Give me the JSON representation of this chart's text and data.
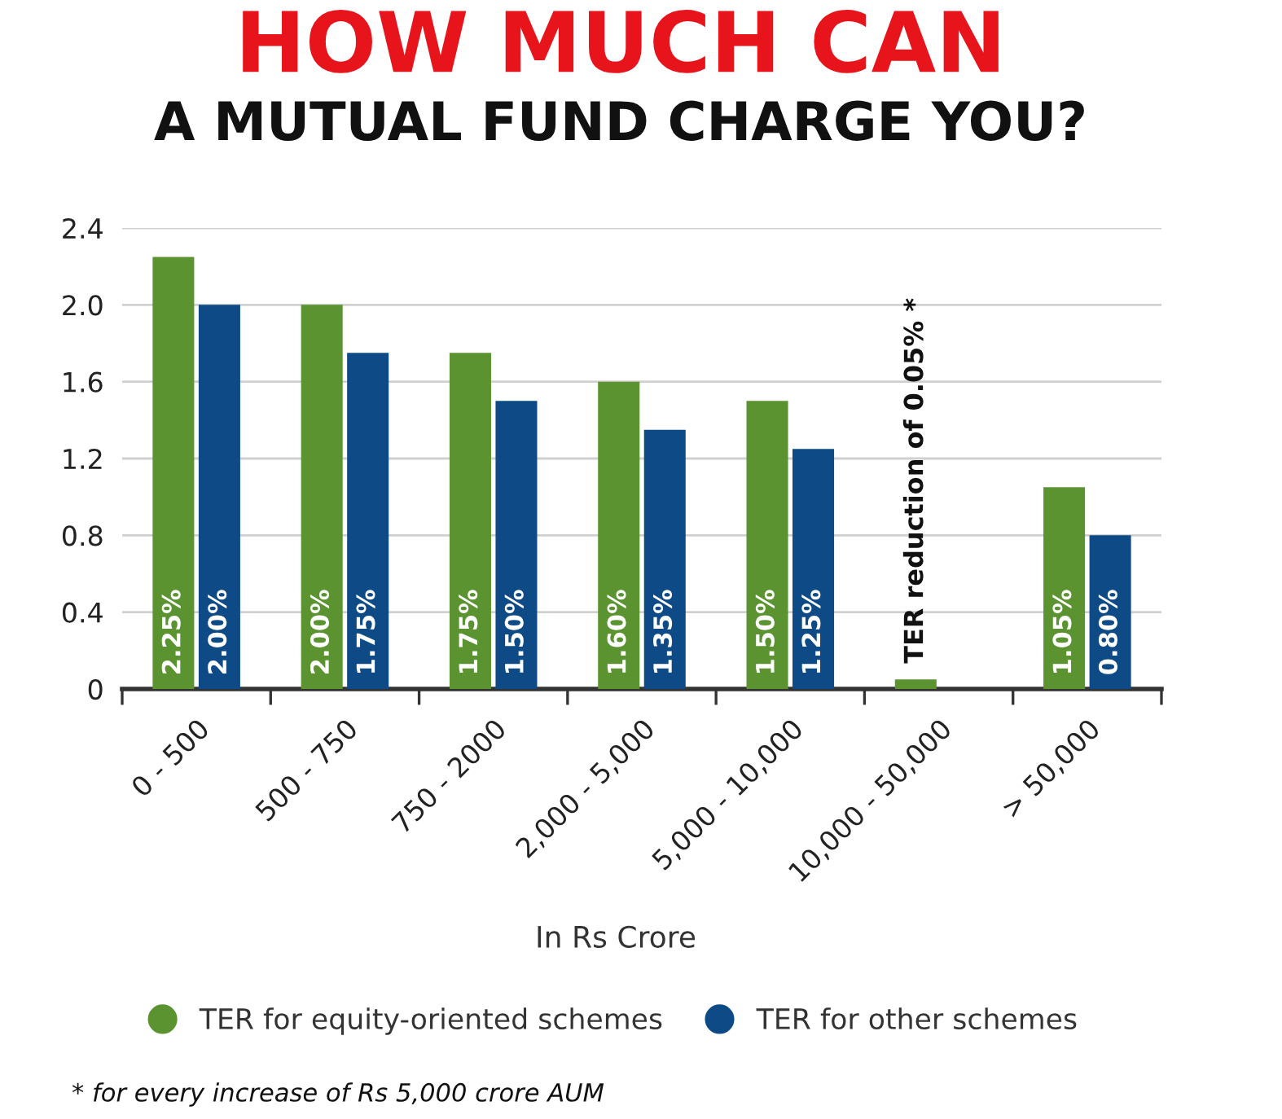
{
  "chart_data": {
    "type": "bar",
    "title": "HOW MUCH CAN",
    "subtitle": "A MUTUAL FUND CHARGE YOU?",
    "xlabel": "In Rs Crore",
    "categories": [
      "0 - 500",
      "500 - 750",
      "750 - 2000",
      "2,000 - 5,000",
      "5,000 - 10,000",
      "10,000 - 50,000",
      "> 50,000"
    ],
    "series": [
      {
        "name": "TER for equity-oriented schemes",
        "color": "#5b9331",
        "values": [
          2.25,
          2.0,
          1.75,
          1.6,
          1.5,
          0.05,
          1.05
        ],
        "value_labels": [
          "2.25%",
          "2.00%",
          "1.75%",
          "1.60%",
          "1.50%",
          null,
          "1.05%"
        ]
      },
      {
        "name": "TER for other schemes",
        "color": "#0d4a86",
        "values": [
          2.0,
          1.75,
          1.5,
          1.35,
          1.25,
          null,
          0.8
        ],
        "value_labels": [
          "2.00%",
          "1.75%",
          "1.50%",
          "1.35%",
          "1.25%",
          null,
          "0.80%"
        ]
      }
    ],
    "ylim": [
      0,
      2.4
    ],
    "yticks": [
      0,
      0.4,
      0.8,
      1.2,
      1.6,
      {
        "value": 2.0,
        "label": "2.0"
      },
      2.4
    ],
    "grid": "y",
    "legend": "bottom",
    "annotations": [
      {
        "text": "TER reduction of 0.05% *",
        "x": "10,000 - 50,000",
        "y": 0.05
      },
      "* for every increase of Rs 5,000 crore AUM"
    ]
  }
}
